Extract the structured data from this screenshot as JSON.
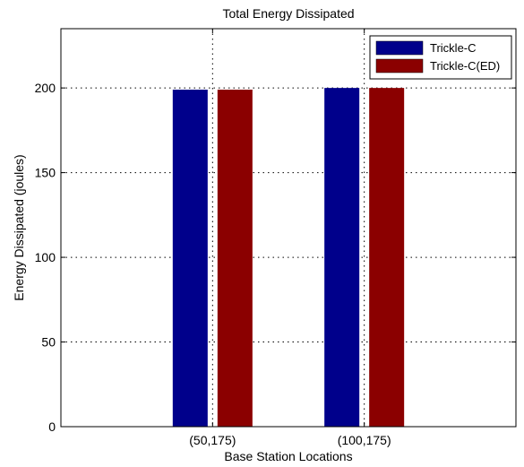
{
  "chart_data": {
    "type": "bar",
    "title": "Total Energy Dissipated",
    "xlabel": "Base Station Locations",
    "ylabel": "Energy Dissipated (joules)",
    "categories": [
      "(50,175)",
      "(100,175)"
    ],
    "series": [
      {
        "name": "Trickle-C",
        "values": [
          199,
          200
        ],
        "color": "#00008b"
      },
      {
        "name": "Trickle-C(ED)",
        "values": [
          199,
          200
        ],
        "color": "#8b0000"
      }
    ],
    "ylim": [
      0,
      235
    ],
    "yticks": [
      0,
      50,
      100,
      150,
      200
    ],
    "grid": true,
    "legend_position": "top-right"
  }
}
